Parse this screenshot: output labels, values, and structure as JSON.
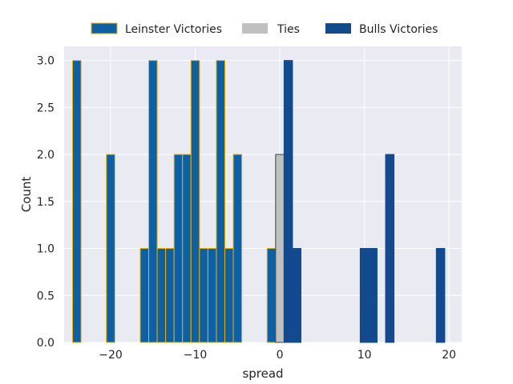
{
  "chart_data": {
    "type": "bar",
    "xlabel": "spread",
    "ylabel": "Count",
    "xlim": [
      -25.5,
      21.5
    ],
    "ylim": [
      0,
      3.15
    ],
    "bin_width": 1,
    "xticks": [
      -20,
      -10,
      0,
      10,
      20
    ],
    "xtick_labels": [
      "−20",
      "−10",
      "0",
      "10",
      "20"
    ],
    "yticks": [
      0.0,
      0.5,
      1.0,
      1.5,
      2.0,
      2.5,
      3.0
    ],
    "ytick_labels": [
      "0.0",
      "0.5",
      "1.0",
      "1.5",
      "2.0",
      "2.5",
      "3.0"
    ],
    "grid": true,
    "legend_position": "top-center",
    "series": [
      {
        "name": "Leinster Victories",
        "color": "#0f5fa3",
        "edge_color": "#e6b000",
        "x": [
          -24,
          -20,
          -16,
          -15,
          -14,
          -13,
          -12,
          -11,
          -10,
          -9,
          -8,
          -7,
          -6,
          -5,
          -1
        ],
        "values": [
          3,
          2,
          1,
          3,
          1,
          1,
          2,
          2,
          3,
          1,
          1,
          3,
          1,
          2,
          1
        ]
      },
      {
        "name": "Ties",
        "color": "#c0c0c0",
        "edge_color": "#404040",
        "x": [
          0
        ],
        "values": [
          2
        ]
      },
      {
        "name": "Bulls Victories",
        "color": "#134a8e",
        "edge_color": "#134a8e",
        "x": [
          1,
          2,
          10,
          11,
          13,
          19
        ],
        "values": [
          3,
          1,
          1,
          1,
          2,
          1
        ]
      }
    ]
  }
}
